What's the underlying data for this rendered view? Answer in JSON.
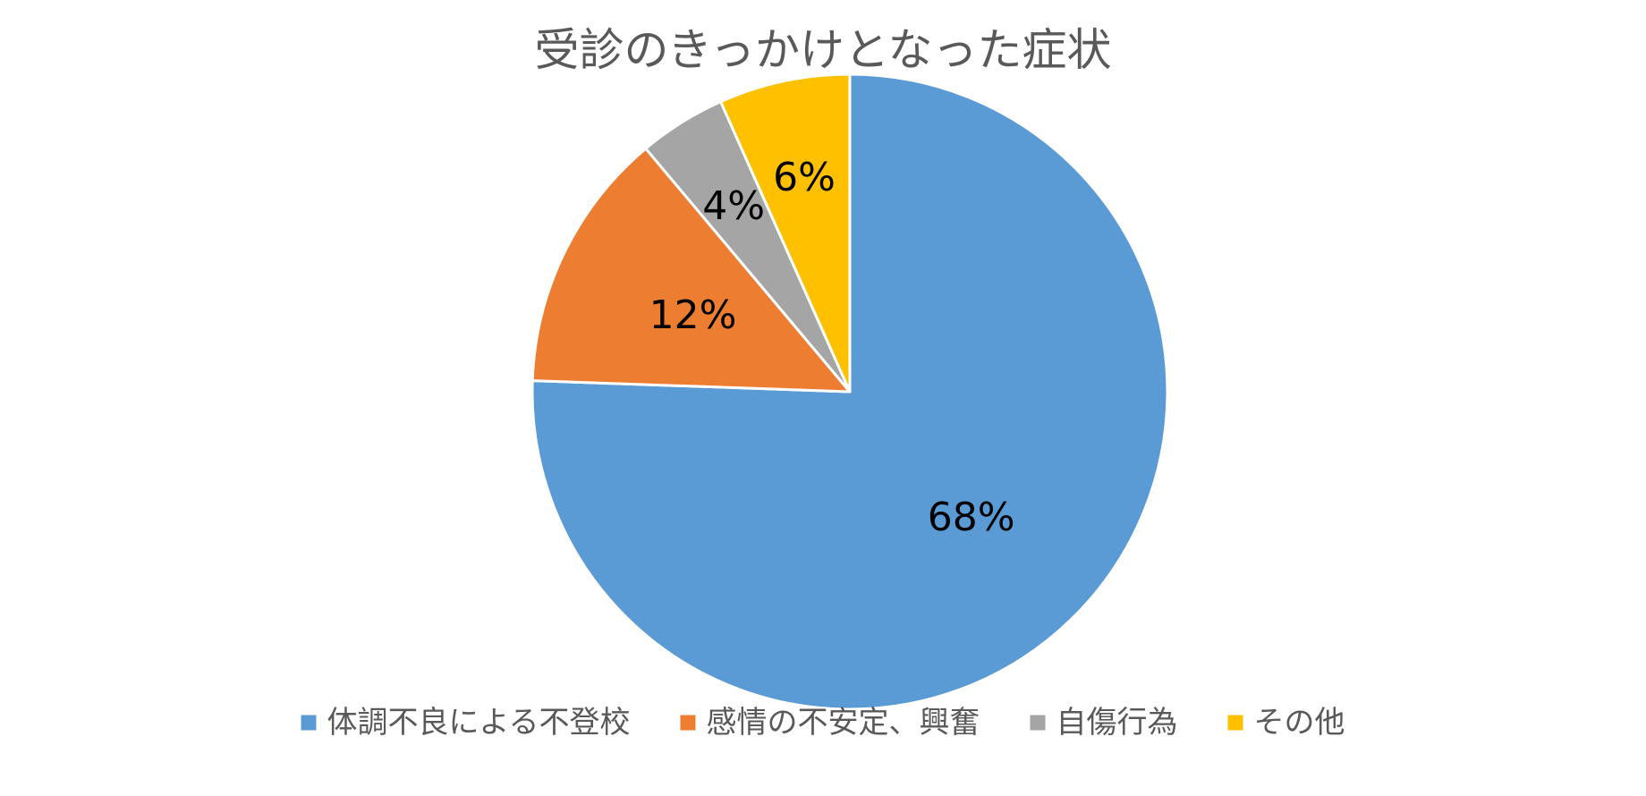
{
  "chart_data": {
    "type": "pie",
    "title": "受診のきっかけとなった症状",
    "categories": [
      "体調不良による不登校",
      "感情の不安定、興奮",
      "自傷行為",
      "その他"
    ],
    "values": [
      68,
      12,
      4,
      6
    ],
    "data_labels": [
      "68%",
      "12%",
      "4%",
      "6%"
    ],
    "colors": [
      "#5B9BD5",
      "#ED7D31",
      "#A5A5A5",
      "#FFC000"
    ],
    "start_angle": "12 o'clock",
    "direction": "clockwise",
    "legend_position": "bottom"
  }
}
